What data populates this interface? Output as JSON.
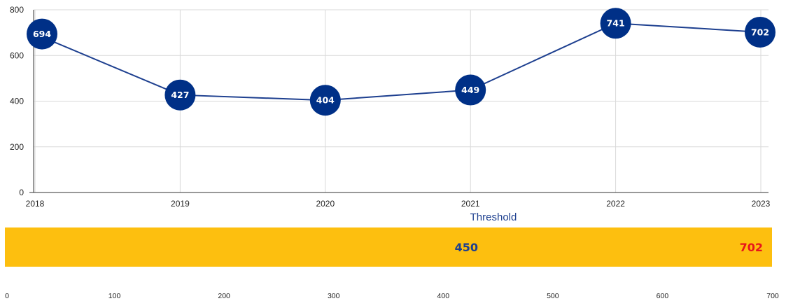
{
  "colors": {
    "line": "#1d3f8f",
    "marker": "#003087",
    "bar": "#fdbf0f",
    "threshold_value": "#1d3f8f",
    "current_value": "#e8151b"
  },
  "chart_data": [
    {
      "type": "line",
      "title": "",
      "xlabel": "",
      "ylabel": "",
      "x": [
        "2018",
        "2019",
        "2020",
        "2021",
        "2022",
        "2023"
      ],
      "series": [
        {
          "values": [
            694,
            427,
            404,
            449,
            741,
            702
          ]
        }
      ],
      "ylim": [
        0,
        800
      ],
      "yticks": [
        0,
        200,
        400,
        600,
        800
      ],
      "grid": true,
      "legend": "none"
    },
    {
      "type": "bar",
      "title": "Threshold",
      "threshold": {
        "label": "450",
        "value": 450
      },
      "current": {
        "label": "702",
        "value": 702
      },
      "xlim": [
        0,
        700
      ],
      "xticks": [
        0,
        100,
        200,
        300,
        400,
        500,
        600,
        700
      ]
    }
  ]
}
